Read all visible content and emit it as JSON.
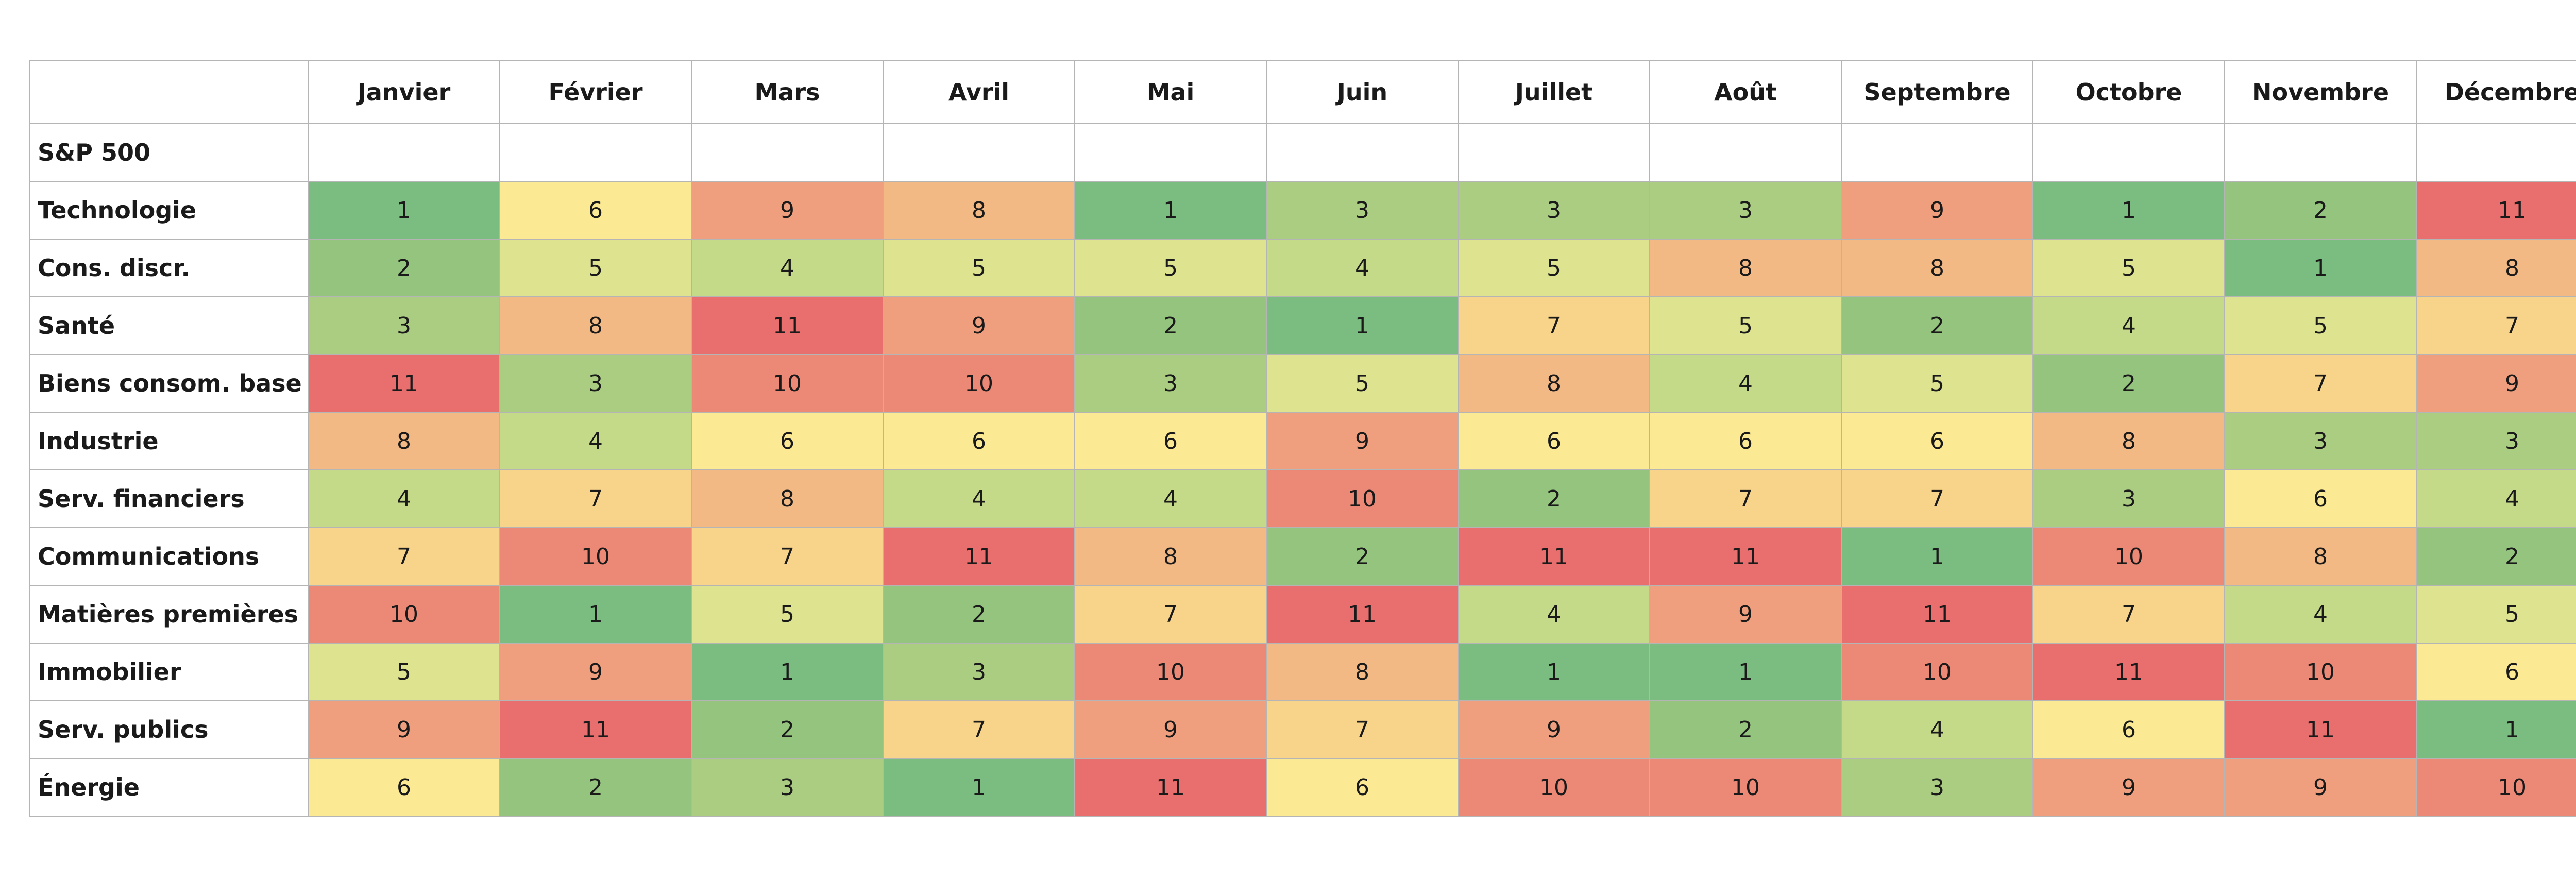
{
  "chart_data": {
    "type": "heatmap",
    "corner": "",
    "columns": [
      "Janvier",
      "Février",
      "Mars",
      "Avril",
      "Mai",
      "Juin",
      "Juillet",
      "Août",
      "Septembre",
      "Octobre",
      "Novembre",
      "Décembre"
    ],
    "group_label": "S&P 500",
    "rows": [
      {
        "label": "Technologie",
        "values": [
          1,
          6,
          9,
          8,
          1,
          3,
          3,
          3,
          9,
          1,
          2,
          11
        ]
      },
      {
        "label": "Cons. discr.",
        "values": [
          2,
          5,
          4,
          5,
          5,
          4,
          5,
          8,
          8,
          5,
          1,
          8
        ]
      },
      {
        "label": "Santé",
        "values": [
          3,
          8,
          11,
          9,
          2,
          1,
          7,
          5,
          2,
          4,
          5,
          7
        ]
      },
      {
        "label": "Biens consom. base",
        "values": [
          11,
          3,
          10,
          10,
          3,
          5,
          8,
          4,
          5,
          2,
          7,
          9
        ]
      },
      {
        "label": "Industrie",
        "values": [
          8,
          4,
          6,
          6,
          6,
          9,
          6,
          6,
          6,
          8,
          3,
          3
        ]
      },
      {
        "label": "Serv. financiers",
        "values": [
          4,
          7,
          8,
          4,
          4,
          10,
          2,
          7,
          7,
          3,
          6,
          4
        ]
      },
      {
        "label": "Communications",
        "values": [
          7,
          10,
          7,
          11,
          8,
          2,
          11,
          11,
          1,
          10,
          8,
          2
        ]
      },
      {
        "label": "Matières premières",
        "values": [
          10,
          1,
          5,
          2,
          7,
          11,
          4,
          9,
          11,
          7,
          4,
          5
        ]
      },
      {
        "label": "Immobilier",
        "values": [
          5,
          9,
          1,
          3,
          10,
          8,
          1,
          1,
          10,
          11,
          10,
          6
        ]
      },
      {
        "label": "Serv. publics",
        "values": [
          9,
          11,
          2,
          7,
          9,
          7,
          9,
          2,
          4,
          6,
          11,
          1
        ]
      },
      {
        "label": "Énergie",
        "values": [
          6,
          2,
          3,
          1,
          11,
          6,
          10,
          10,
          3,
          9,
          9,
          10
        ]
      }
    ],
    "value_range": [
      1,
      11
    ],
    "color_scale": {
      "1": "#7bbd81",
      "2": "#95c47f",
      "3": "#aacd82",
      "4": "#c5da88",
      "5": "#dde38f",
      "6": "#fbe993",
      "7": "#f8d48b",
      "8": "#f3b985",
      "9": "#ef9f7d",
      "10": "#ec8976",
      "11": "#e86f6e"
    }
  }
}
